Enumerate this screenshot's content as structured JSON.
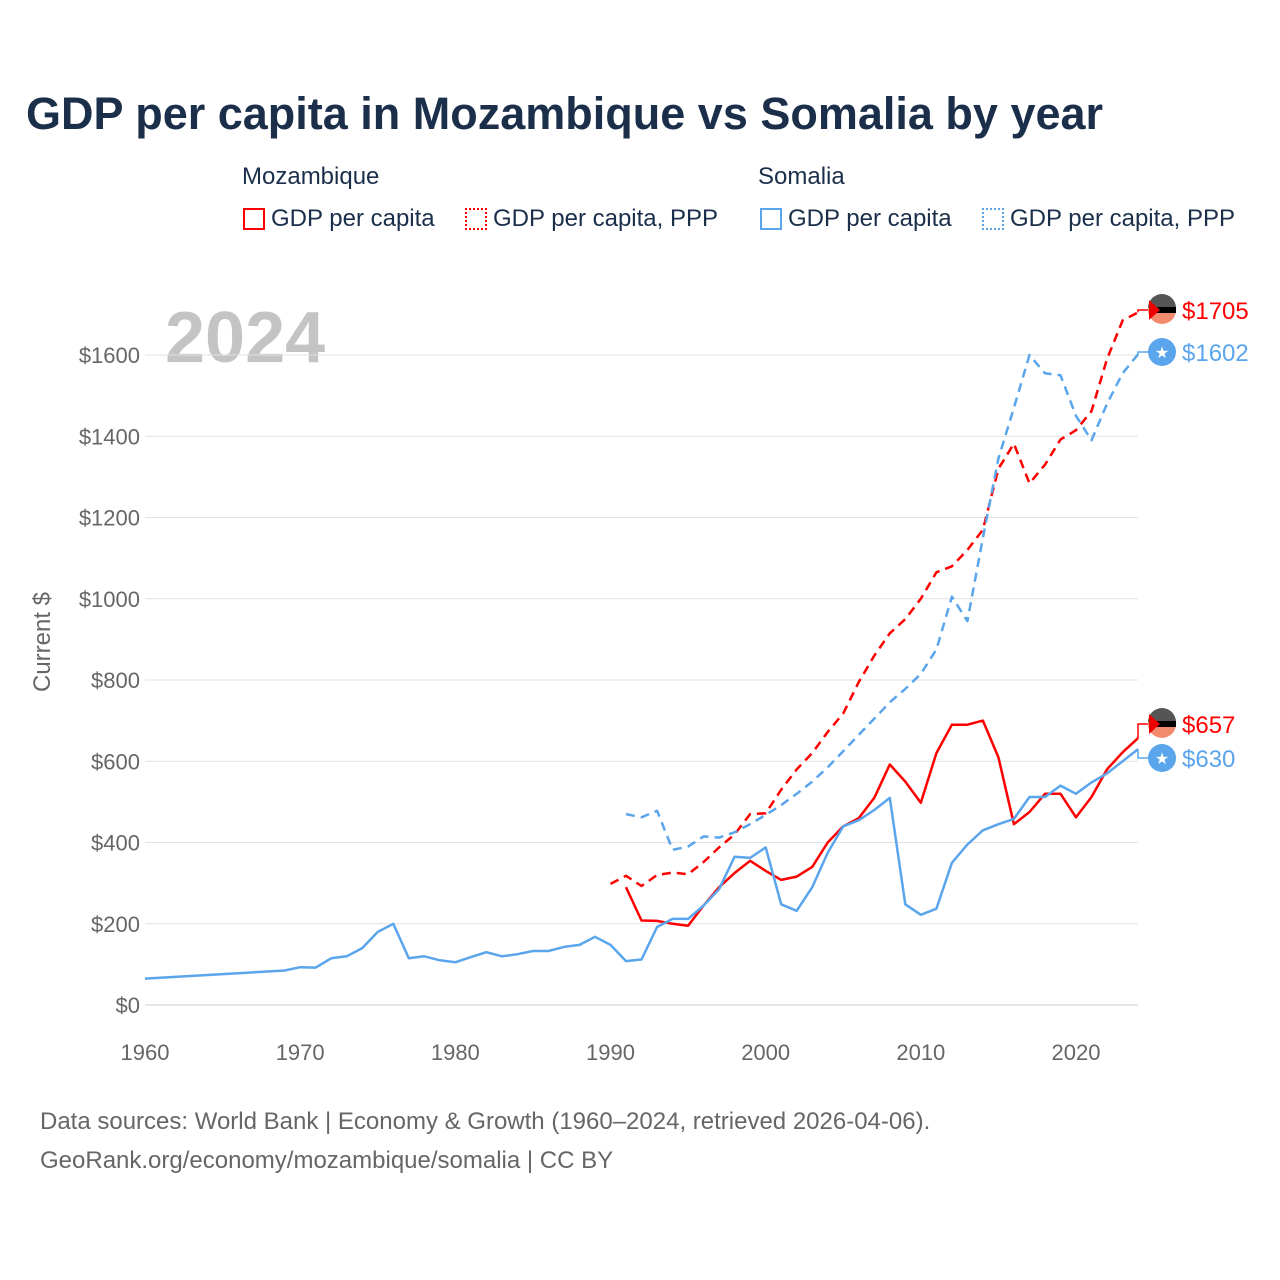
{
  "title": "GDP per capita in Mozambique vs Somalia by year",
  "legend": {
    "groups": [
      {
        "name": "Mozambique",
        "items": [
          "GDP per capita",
          "GDP per capita, PPP"
        ]
      },
      {
        "name": "Somalia",
        "items": [
          "GDP per capita",
          "GDP per capita, PPP"
        ]
      }
    ]
  },
  "year_watermark": "2024",
  "footer": {
    "line1": "Data sources: World Bank | Economy & Growth (1960–2024, retrieved 2026-04-06).",
    "line2": "GeoRank.org/economy/mozambique/somalia | CC BY"
  },
  "colors": {
    "mozambique": "#ff0000",
    "somalia": "#5aa5ec"
  },
  "chart_data": {
    "type": "line",
    "title": "GDP per capita in Mozambique vs Somalia by year",
    "xlabel": "",
    "ylabel": "Current $",
    "xlim": [
      1960,
      2024
    ],
    "ylim": [
      0,
      1700
    ],
    "xticks": [
      1960,
      1970,
      1980,
      1990,
      2000,
      2010,
      2020
    ],
    "yticks": [
      0,
      200,
      400,
      600,
      800,
      1000,
      1200,
      1400,
      1600
    ],
    "ytick_labels": [
      "$0",
      "$200",
      "$400",
      "$600",
      "$800",
      "$1000",
      "$1200",
      "$1400",
      "$1600"
    ],
    "grid": true,
    "series": [
      {
        "name": "Mozambique GDP per capita",
        "country": "mozambique",
        "dash": false,
        "end_label": "$657",
        "x": [
          1991,
          1992,
          1993,
          1994,
          1995,
          1996,
          1997,
          1998,
          1999,
          2000,
          2001,
          2002,
          2003,
          2004,
          2005,
          2006,
          2007,
          2008,
          2009,
          2010,
          2011,
          2012,
          2013,
          2014,
          2015,
          2016,
          2017,
          2018,
          2019,
          2020,
          2021,
          2022,
          2023,
          2024
        ],
        "y": [
          290,
          208,
          207,
          200,
          195,
          245,
          290,
          325,
          355,
          330,
          308,
          316,
          340,
          400,
          440,
          460,
          510,
          592,
          550,
          498,
          620,
          690,
          690,
          700,
          610,
          445,
          475,
          520,
          520,
          462,
          512,
          580,
          622,
          657
        ]
      },
      {
        "name": "Mozambique GDP per capita, PPP",
        "country": "mozambique",
        "dash": true,
        "end_label": "$1705",
        "x": [
          1990,
          1991,
          1992,
          1993,
          1994,
          1995,
          1996,
          1997,
          1998,
          1999,
          2000,
          2001,
          2002,
          2003,
          2004,
          2005,
          2006,
          2007,
          2008,
          2009,
          2010,
          2011,
          2012,
          2013,
          2014,
          2015,
          2016,
          2017,
          2018,
          2019,
          2020,
          2021,
          2022,
          2023,
          2024
        ],
        "y": [
          298,
          318,
          293,
          320,
          326,
          322,
          352,
          388,
          420,
          470,
          472,
          530,
          580,
          620,
          672,
          718,
          795,
          860,
          915,
          950,
          1000,
          1065,
          1080,
          1120,
          1170,
          1320,
          1382,
          1284,
          1330,
          1392,
          1415,
          1462,
          1590,
          1685,
          1705
        ]
      },
      {
        "name": "Somalia GDP per capita",
        "country": "somalia",
        "dash": false,
        "end_label": "$630",
        "x": [
          1960,
          1969,
          1970,
          1971,
          1972,
          1973,
          1974,
          1975,
          1976,
          1977,
          1978,
          1979,
          1980,
          1981,
          1982,
          1983,
          1984,
          1985,
          1986,
          1987,
          1988,
          1989,
          1990,
          1991,
          1992,
          1993,
          1994,
          1995,
          1996,
          1997,
          1998,
          1999,
          2000,
          2001,
          2002,
          2003,
          2004,
          2005,
          2006,
          2007,
          2008,
          2009,
          2010,
          2011,
          2012,
          2013,
          2014,
          2015,
          2016,
          2017,
          2018,
          2019,
          2020,
          2021,
          2022,
          2023,
          2024
        ],
        "y": [
          65,
          85,
          93,
          92,
          115,
          120,
          140,
          180,
          200,
          115,
          120,
          110,
          105,
          118,
          130,
          120,
          125,
          133,
          133,
          143,
          148,
          168,
          148,
          108,
          112,
          192,
          212,
          212,
          245,
          285,
          365,
          362,
          388,
          248,
          232,
          290,
          375,
          440,
          455,
          480,
          510,
          248,
          222,
          237,
          350,
          395,
          430,
          445,
          458,
          512,
          512,
          540,
          520,
          548,
          570,
          600,
          630
        ]
      },
      {
        "name": "Somalia GDP per capita, PPP",
        "country": "somalia",
        "dash": true,
        "end_label": "$1602",
        "x": [
          1991,
          1992,
          1993,
          1994,
          1995,
          1996,
          1997,
          1998,
          1999,
          2000,
          2001,
          2002,
          2003,
          2004,
          2005,
          2006,
          2007,
          2008,
          2009,
          2010,
          2011,
          2012,
          2013,
          2014,
          2015,
          2016,
          2017,
          2018,
          2019,
          2020,
          2021,
          2022,
          2023,
          2024
        ],
        "y": [
          470,
          462,
          478,
          382,
          390,
          415,
          412,
          425,
          445,
          468,
          492,
          520,
          550,
          585,
          625,
          665,
          705,
          745,
          778,
          815,
          875,
          1005,
          945,
          1150,
          1345,
          1470,
          1600,
          1555,
          1550,
          1450,
          1390,
          1480,
          1555,
          1602
        ]
      }
    ]
  }
}
